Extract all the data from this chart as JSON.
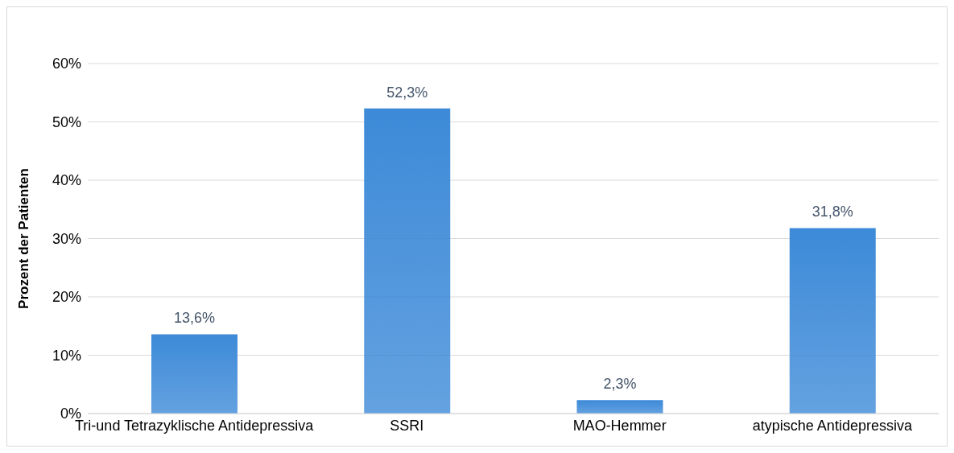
{
  "chart_data": {
    "type": "bar",
    "ylabel": "Prozent der Patienten",
    "categories": [
      "Tri-und Tetrazyklische Antidepressiva",
      "SSRI",
      "MAO-Hemmer",
      "atypische Antidepressiva"
    ],
    "values": [
      13.6,
      52.3,
      2.3,
      31.8
    ],
    "value_labels": [
      "13,6%",
      "52,3%",
      "2,3%",
      "31,8%"
    ],
    "color": "#3d8ad8",
    "ylim": [
      0,
      60
    ],
    "yticks": [
      {
        "value": 0,
        "label": "0%"
      },
      {
        "value": 10,
        "label": "10%"
      },
      {
        "value": 20,
        "label": "20%"
      },
      {
        "value": 30,
        "label": "30%"
      },
      {
        "value": 40,
        "label": "40%"
      },
      {
        "value": 50,
        "label": "50%"
      },
      {
        "value": 60,
        "label": "60%"
      }
    ],
    "grid": "y",
    "legend": false
  }
}
